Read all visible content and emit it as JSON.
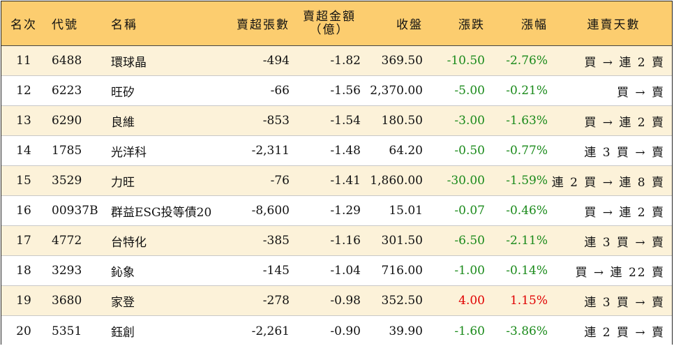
{
  "headers": {
    "rank": "名次",
    "code": "代號",
    "name": "名稱",
    "net_sell_lots": "賣超張數",
    "net_sell_amount_line1": "賣超金額",
    "net_sell_amount_line2": "（億）",
    "close": "收盤",
    "change": "漲跌",
    "change_pct": "漲幅",
    "consecutive_days": "連賣天數"
  },
  "rows": [
    {
      "rank": "11",
      "code": "6488",
      "name": "環球晶",
      "lots": "-494",
      "amount": "-1.82",
      "close": "369.50",
      "change": "-10.50",
      "pct": "-2.76%",
      "days": "買 → 連 2 賣",
      "dir": "down"
    },
    {
      "rank": "12",
      "code": "6223",
      "name": "旺矽",
      "lots": "-66",
      "amount": "-1.56",
      "close": "2,370.00",
      "change": "-5.00",
      "pct": "-0.21%",
      "days": "買 → 賣",
      "dir": "down"
    },
    {
      "rank": "13",
      "code": "6290",
      "name": "良維",
      "lots": "-853",
      "amount": "-1.54",
      "close": "180.50",
      "change": "-3.00",
      "pct": "-1.63%",
      "days": "買 → 連 2 賣",
      "dir": "down"
    },
    {
      "rank": "14",
      "code": "1785",
      "name": "光洋科",
      "lots": "-2,311",
      "amount": "-1.48",
      "close": "64.20",
      "change": "-0.50",
      "pct": "-0.77%",
      "days": "連 3 買 → 賣",
      "dir": "down"
    },
    {
      "rank": "15",
      "code": "3529",
      "name": "力旺",
      "lots": "-76",
      "amount": "-1.41",
      "close": "1,860.00",
      "change": "-30.00",
      "pct": "-1.59%",
      "days": "連 2 買 → 連 8 賣",
      "dir": "down"
    },
    {
      "rank": "16",
      "code": "00937B",
      "name": "群益ESG投等債20",
      "lots": "-8,600",
      "amount": "-1.29",
      "close": "15.01",
      "change": "-0.07",
      "pct": "-0.46%",
      "days": "買 → 連 2 賣",
      "dir": "down"
    },
    {
      "rank": "17",
      "code": "4772",
      "name": "台特化",
      "lots": "-385",
      "amount": "-1.16",
      "close": "301.50",
      "change": "-6.50",
      "pct": "-2.11%",
      "days": "連 3 買 → 賣",
      "dir": "down"
    },
    {
      "rank": "18",
      "code": "3293",
      "name": "鈊象",
      "lots": "-145",
      "amount": "-1.04",
      "close": "716.00",
      "change": "-1.00",
      "pct": "-0.14%",
      "days": "買 → 連 22 賣",
      "dir": "down"
    },
    {
      "rank": "19",
      "code": "3680",
      "name": "家登",
      "lots": "-278",
      "amount": "-0.98",
      "close": "352.50",
      "change": "4.00",
      "pct": "1.15%",
      "days": "連 3 買 → 賣",
      "dir": "up"
    },
    {
      "rank": "20",
      "code": "5351",
      "name": "鈺創",
      "lots": "-2,261",
      "amount": "-0.90",
      "close": "39.90",
      "change": "-1.60",
      "pct": "-3.86%",
      "days": "連 2 買 → 賣",
      "dir": "down"
    }
  ],
  "colors": {
    "header_bg": "#fccd6f",
    "odd_row_bg": "#fcf2d9",
    "down": "#1a8a1a",
    "up": "#e00000"
  }
}
